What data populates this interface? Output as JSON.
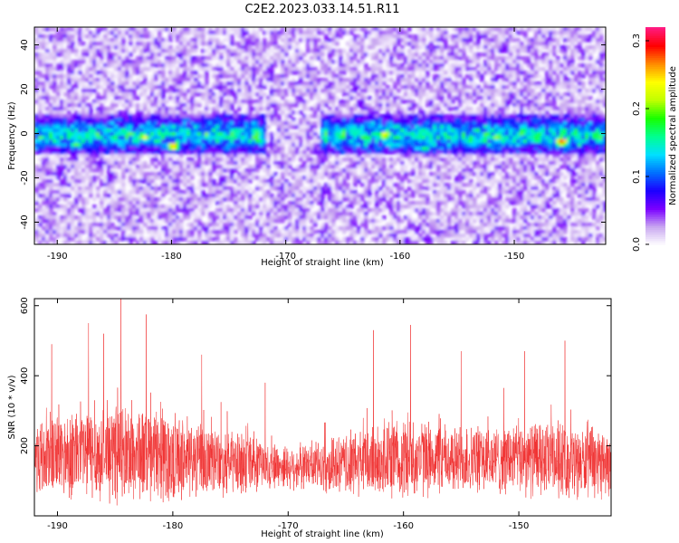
{
  "title": "C2E2.2023.033.14.51.R11",
  "chart_data": [
    {
      "type": "heatmap",
      "xlabel": "Height of straight line (km)",
      "ylabel": "Frequency (Hz)",
      "xlim": [
        -192,
        -142
      ],
      "ylim": [
        -50,
        48
      ],
      "xticks": [
        -190,
        -180,
        -170,
        -160,
        -150
      ],
      "yticks": [
        -40,
        -20,
        0,
        20,
        40
      ],
      "colorbar": {
        "label": "Normalized spectral amplitude",
        "range": [
          0.0,
          0.32
        ],
        "ticks": [
          0.0,
          0.1,
          0.2,
          0.3
        ],
        "colors": [
          "#ffffff",
          "#c9a8f0",
          "#7a00ff",
          "#1c00ff",
          "#0070ff",
          "#00e0ff",
          "#00ff90",
          "#18ff00",
          "#c0ff00",
          "#ffff00",
          "#ff8c00",
          "#ff0000",
          "#ff1a80"
        ]
      },
      "band": {
        "center_frequency_hz": 0,
        "half_width_hz": 9,
        "gap_x": [
          -172,
          -167
        ],
        "hotspots": [
          {
            "x": -188.5,
            "y": -4,
            "value": 0.2
          },
          {
            "x": -182.5,
            "y": -1,
            "value": 0.24
          },
          {
            "x": -180,
            "y": -5,
            "value": 0.28
          },
          {
            "x": -176,
            "y": 0,
            "value": 0.18
          },
          {
            "x": -161.5,
            "y": 0,
            "value": 0.26
          },
          {
            "x": -158,
            "y": -6,
            "value": 0.18
          },
          {
            "x": -154,
            "y": -3,
            "value": 0.18
          },
          {
            "x": -148,
            "y": 0,
            "value": 0.2
          },
          {
            "x": -146,
            "y": -3,
            "value": 0.3
          }
        ]
      }
    },
    {
      "type": "line",
      "xlabel": "Height of straight line (km)",
      "ylabel": "SNR (10 * v/v)",
      "xlim": [
        -192,
        -142
      ],
      "ylim": [
        0,
        620
      ],
      "xticks": [
        -190,
        -180,
        -170,
        -160,
        -150
      ],
      "yticks": [
        200,
        400,
        600
      ],
      "color": "#f03030",
      "envelope": {
        "x": [
          -192,
          -188,
          -186,
          -184,
          -182,
          -180,
          -178,
          -176,
          -174,
          -172,
          -170,
          -168,
          -166,
          -164,
          -162,
          -160,
          -158,
          -156,
          -154,
          -152,
          -150,
          -148,
          -146,
          -144,
          -142
        ],
        "baseline": [
          170,
          180,
          175,
          180,
          175,
          170,
          160,
          155,
          150,
          145,
          140,
          140,
          140,
          150,
          160,
          165,
          165,
          160,
          160,
          160,
          165,
          160,
          150,
          150,
          145
        ],
        "spread": [
          130,
          150,
          140,
          160,
          150,
          140,
          120,
          110,
          100,
          80,
          70,
          75,
          90,
          110,
          120,
          130,
          120,
          110,
          110,
          110,
          120,
          120,
          110,
          110,
          100
        ]
      },
      "peaks": [
        {
          "x": -184.5,
          "y": 620
        },
        {
          "x": -182.3,
          "y": 575
        },
        {
          "x": -187.3,
          "y": 550
        },
        {
          "x": -186,
          "y": 520
        },
        {
          "x": -190.5,
          "y": 490
        },
        {
          "x": -177.5,
          "y": 460
        },
        {
          "x": -159.4,
          "y": 545
        },
        {
          "x": -162.6,
          "y": 530
        },
        {
          "x": -155,
          "y": 470
        },
        {
          "x": -146,
          "y": 500
        },
        {
          "x": -149.5,
          "y": 470
        },
        {
          "x": -172,
          "y": 380
        }
      ]
    }
  ]
}
